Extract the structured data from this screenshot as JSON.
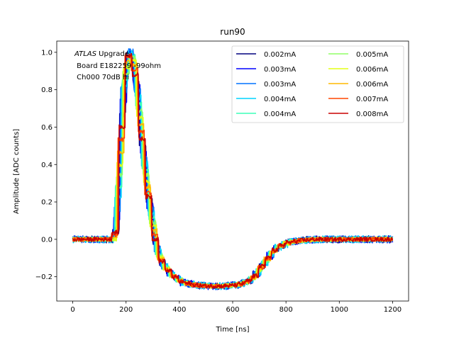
{
  "chart_data": {
    "type": "line",
    "title": "run90",
    "xlabel": "Time [ns]",
    "ylabel": "Amplitude [ADC counts]",
    "xlim": [
      -60,
      1260
    ],
    "ylim": [
      -0.33,
      1.06
    ],
    "xticks": [
      0,
      200,
      400,
      600,
      800,
      1000,
      1200
    ],
    "yticks": [
      -0.2,
      0.0,
      0.2,
      0.4,
      0.6,
      0.8,
      1.0
    ],
    "grid": false,
    "legend_position": "top-right",
    "annotation": {
      "line1_italic": "ATLAS",
      "line1_rest": " Upgrade",
      "line2": " Board E182259 -99ohm",
      "line3": " Ch000 70dB hi"
    },
    "pulse_shape": {
      "x": [
        0,
        140,
        150,
        165,
        180,
        195,
        205,
        215,
        230,
        250,
        270,
        290,
        300,
        310,
        330,
        360,
        400,
        450,
        500,
        550,
        600,
        640,
        670,
        700,
        730,
        760,
        800,
        850,
        900,
        1000,
        1100,
        1200
      ],
      "y": [
        0.0,
        0.0,
        0.05,
        0.4,
        0.8,
        0.98,
        1.0,
        0.96,
        0.8,
        0.5,
        0.25,
        0.07,
        -0.02,
        -0.08,
        -0.14,
        -0.19,
        -0.23,
        -0.245,
        -0.25,
        -0.25,
        -0.245,
        -0.23,
        -0.2,
        -0.14,
        -0.08,
        -0.04,
        -0.015,
        -0.005,
        0.0,
        0.0,
        0.0,
        0.0
      ]
    },
    "series": [
      {
        "name": "0.002mA",
        "color": "#00007f",
        "phase": 0
      },
      {
        "name": "0.003mA",
        "color": "#0000ff",
        "phase": 1
      },
      {
        "name": "0.003mA",
        "color": "#0072ff",
        "phase": 2
      },
      {
        "name": "0.004mA",
        "color": "#00d4ff",
        "phase": 3
      },
      {
        "name": "0.004mA",
        "color": "#3cffb9",
        "phase": 4
      },
      {
        "name": "0.005mA",
        "color": "#8fff66",
        "phase": 5
      },
      {
        "name": "0.006mA",
        "color": "#e4ff13",
        "phase": 6
      },
      {
        "name": "0.006mA",
        "color": "#ffb900",
        "phase": 7
      },
      {
        "name": "0.007mA",
        "color": "#ff4600",
        "phase": 8
      },
      {
        "name": "0.008mA",
        "color": "#c80000",
        "phase": 9
      }
    ],
    "noise_amplitude": 0.012,
    "sample_period_ns": 25
  }
}
